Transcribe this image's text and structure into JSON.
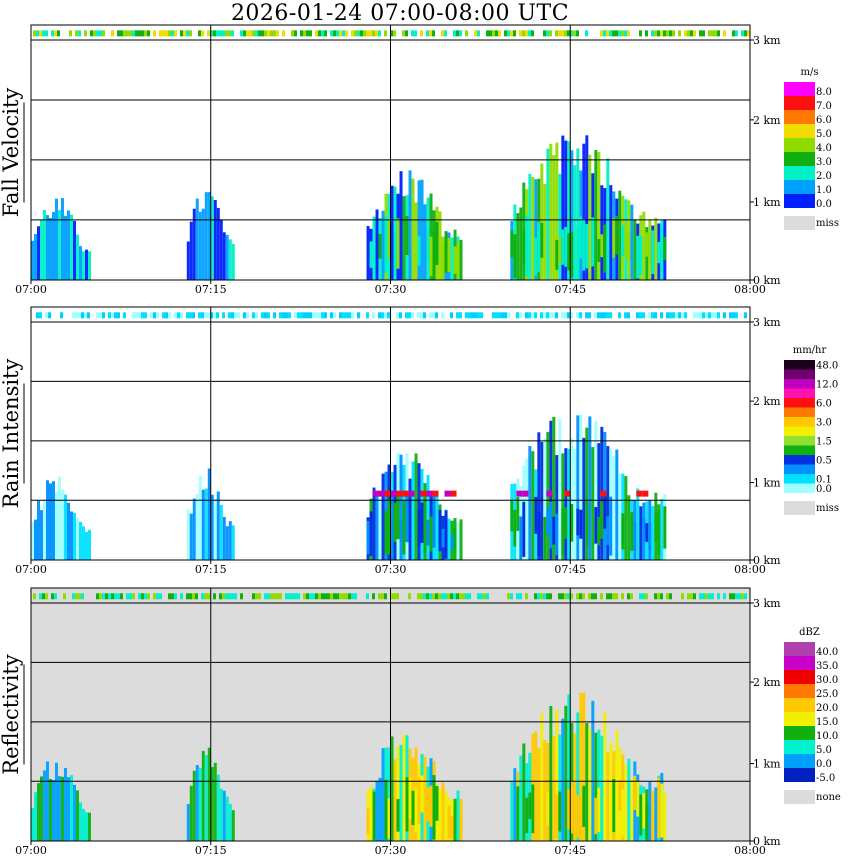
{
  "title": "2026-01-24   07:00-08:00 UTC",
  "time_ticks": [
    "07:00",
    "07:15",
    "07:30",
    "07:45",
    "08:00"
  ],
  "height_ticks": [
    "0 km",
    "1 km",
    "2 km",
    "3 km"
  ],
  "panels": [
    {
      "id": "fall-velocity",
      "title": "Fall Velocity",
      "unit": "m/s",
      "miss_label": "miss",
      "background": "#ffffff",
      "legend": [
        {
          "label": "8.0",
          "color": "#ff00ff"
        },
        {
          "label": "7.0",
          "color": "#ff1010"
        },
        {
          "label": "6.0",
          "color": "#ff7800"
        },
        {
          "label": "5.0",
          "color": "#f0dc00"
        },
        {
          "label": "4.0",
          "color": "#90dc00"
        },
        {
          "label": "3.0",
          "color": "#10b010"
        },
        {
          "label": "2.0",
          "color": "#00f0c8"
        },
        {
          "label": "1.0",
          "color": "#00a0ff"
        },
        {
          "label": "0.0",
          "color": "#0020ff"
        }
      ]
    },
    {
      "id": "rain-intensity",
      "title": "Rain Intensity",
      "unit": "mm/hr",
      "miss_label": "miss",
      "background": "#ffffff",
      "legend": [
        {
          "label": "48.0",
          "color": "#1a001a"
        },
        {
          "label": "",
          "color": "#700070"
        },
        {
          "label": "12.0",
          "color": "#c000c0"
        },
        {
          "label": "",
          "color": "#ff10b0"
        },
        {
          "label": "6.0",
          "color": "#ff1010"
        },
        {
          "label": "",
          "color": "#ff7800"
        },
        {
          "label": "3.0",
          "color": "#ffc800"
        },
        {
          "label": "",
          "color": "#f0f000"
        },
        {
          "label": "1.5",
          "color": "#90e030"
        },
        {
          "label": "",
          "color": "#10b010"
        },
        {
          "label": "0.5",
          "color": "#0030e0"
        },
        {
          "label": "",
          "color": "#0090ff"
        },
        {
          "label": "0.1",
          "color": "#00e0ff"
        },
        {
          "label": "0.0",
          "color": "#a0ffff"
        }
      ]
    },
    {
      "id": "reflectivity",
      "title": "Reflectivity",
      "unit": "dBZ",
      "miss_label": "none",
      "background": "#dcdcdc",
      "legend": [
        {
          "label": "40.0",
          "color": "#b040b0"
        },
        {
          "label": "35.0",
          "color": "#c800c8"
        },
        {
          "label": "30.0",
          "color": "#f00000"
        },
        {
          "label": "25.0",
          "color": "#ff7800"
        },
        {
          "label": "20.0",
          "color": "#ffc800"
        },
        {
          "label": "15.0",
          "color": "#f0f000"
        },
        {
          "label": "10.0",
          "color": "#10b010"
        },
        {
          "label": "5.0",
          "color": "#00f0d0"
        },
        {
          "label": "0.0",
          "color": "#00a0ff"
        },
        {
          "label": "-5.0",
          "color": "#0020c0"
        }
      ]
    }
  ],
  "chart_data": {
    "type": "heatmap",
    "title": "2026-01-24   07:00-08:00 UTC",
    "xlabel": "",
    "ylabel": "",
    "xlim": [
      "07:00",
      "08:00"
    ],
    "ylim_km": [
      0,
      3
    ],
    "rain_events": [
      {
        "start": "07:00",
        "end": "07:05",
        "top_km": 0.9
      },
      {
        "start": "07:13",
        "end": "07:17",
        "top_km": 1.0
      },
      {
        "start": "07:28",
        "end": "07:36",
        "top_km": 1.2
      },
      {
        "start": "07:40",
        "end": "07:53",
        "top_km": 1.6
      }
    ],
    "bright_band_km": 0.8
  }
}
